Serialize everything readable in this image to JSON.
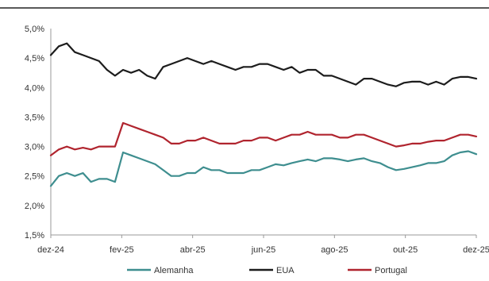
{
  "chart_data": {
    "type": "line",
    "x_tick_labels": [
      "dez-24",
      "fev-25",
      "abr-25",
      "jun-25",
      "ago-25",
      "out-25",
      "dez-25"
    ],
    "y_tick_labels": [
      "1,5%",
      "2,0%",
      "2,5%",
      "3,0%",
      "3,5%",
      "4,0%",
      "4,5%",
      "5,0%"
    ],
    "y_ticks": [
      1.5,
      2.0,
      2.5,
      3.0,
      3.5,
      4.0,
      4.5,
      5.0
    ],
    "ylim": [
      1.5,
      5.0
    ],
    "x_count": 54,
    "grid": false,
    "legend_position": "bottom",
    "series": [
      {
        "name": "Alemanha",
        "color": "#3e8e8f",
        "values": [
          2.33,
          2.5,
          2.55,
          2.5,
          2.55,
          2.4,
          2.45,
          2.45,
          2.4,
          2.9,
          2.85,
          2.8,
          2.75,
          2.7,
          2.6,
          2.5,
          2.5,
          2.55,
          2.55,
          2.65,
          2.6,
          2.6,
          2.55,
          2.55,
          2.55,
          2.6,
          2.6,
          2.65,
          2.7,
          2.68,
          2.72,
          2.75,
          2.78,
          2.75,
          2.8,
          2.8,
          2.78,
          2.75,
          2.78,
          2.8,
          2.75,
          2.72,
          2.65,
          2.6,
          2.62,
          2.65,
          2.68,
          2.72,
          2.72,
          2.75,
          2.85,
          2.9,
          2.92,
          2.87
        ]
      },
      {
        "name": "EUA",
        "color": "#1c1c1c",
        "values": [
          4.55,
          4.7,
          4.75,
          4.6,
          4.55,
          4.5,
          4.45,
          4.3,
          4.2,
          4.3,
          4.25,
          4.3,
          4.2,
          4.15,
          4.35,
          4.4,
          4.45,
          4.5,
          4.45,
          4.4,
          4.45,
          4.4,
          4.35,
          4.3,
          4.35,
          4.35,
          4.4,
          4.4,
          4.35,
          4.3,
          4.35,
          4.25,
          4.3,
          4.3,
          4.2,
          4.2,
          4.15,
          4.1,
          4.05,
          4.15,
          4.15,
          4.1,
          4.05,
          4.02,
          4.08,
          4.1,
          4.1,
          4.05,
          4.1,
          4.05,
          4.15,
          4.18,
          4.18,
          4.15
        ]
      },
      {
        "name": "Portugal",
        "color": "#b0242e",
        "values": [
          2.85,
          2.95,
          3.0,
          2.95,
          2.98,
          2.95,
          3.0,
          3.0,
          3.0,
          3.4,
          3.35,
          3.3,
          3.25,
          3.2,
          3.15,
          3.05,
          3.05,
          3.1,
          3.1,
          3.15,
          3.1,
          3.05,
          3.05,
          3.05,
          3.1,
          3.1,
          3.15,
          3.15,
          3.1,
          3.15,
          3.2,
          3.2,
          3.25,
          3.2,
          3.2,
          3.2,
          3.15,
          3.15,
          3.2,
          3.2,
          3.15,
          3.1,
          3.05,
          3.0,
          3.02,
          3.05,
          3.05,
          3.08,
          3.1,
          3.1,
          3.15,
          3.2,
          3.2,
          3.17
        ]
      }
    ]
  }
}
